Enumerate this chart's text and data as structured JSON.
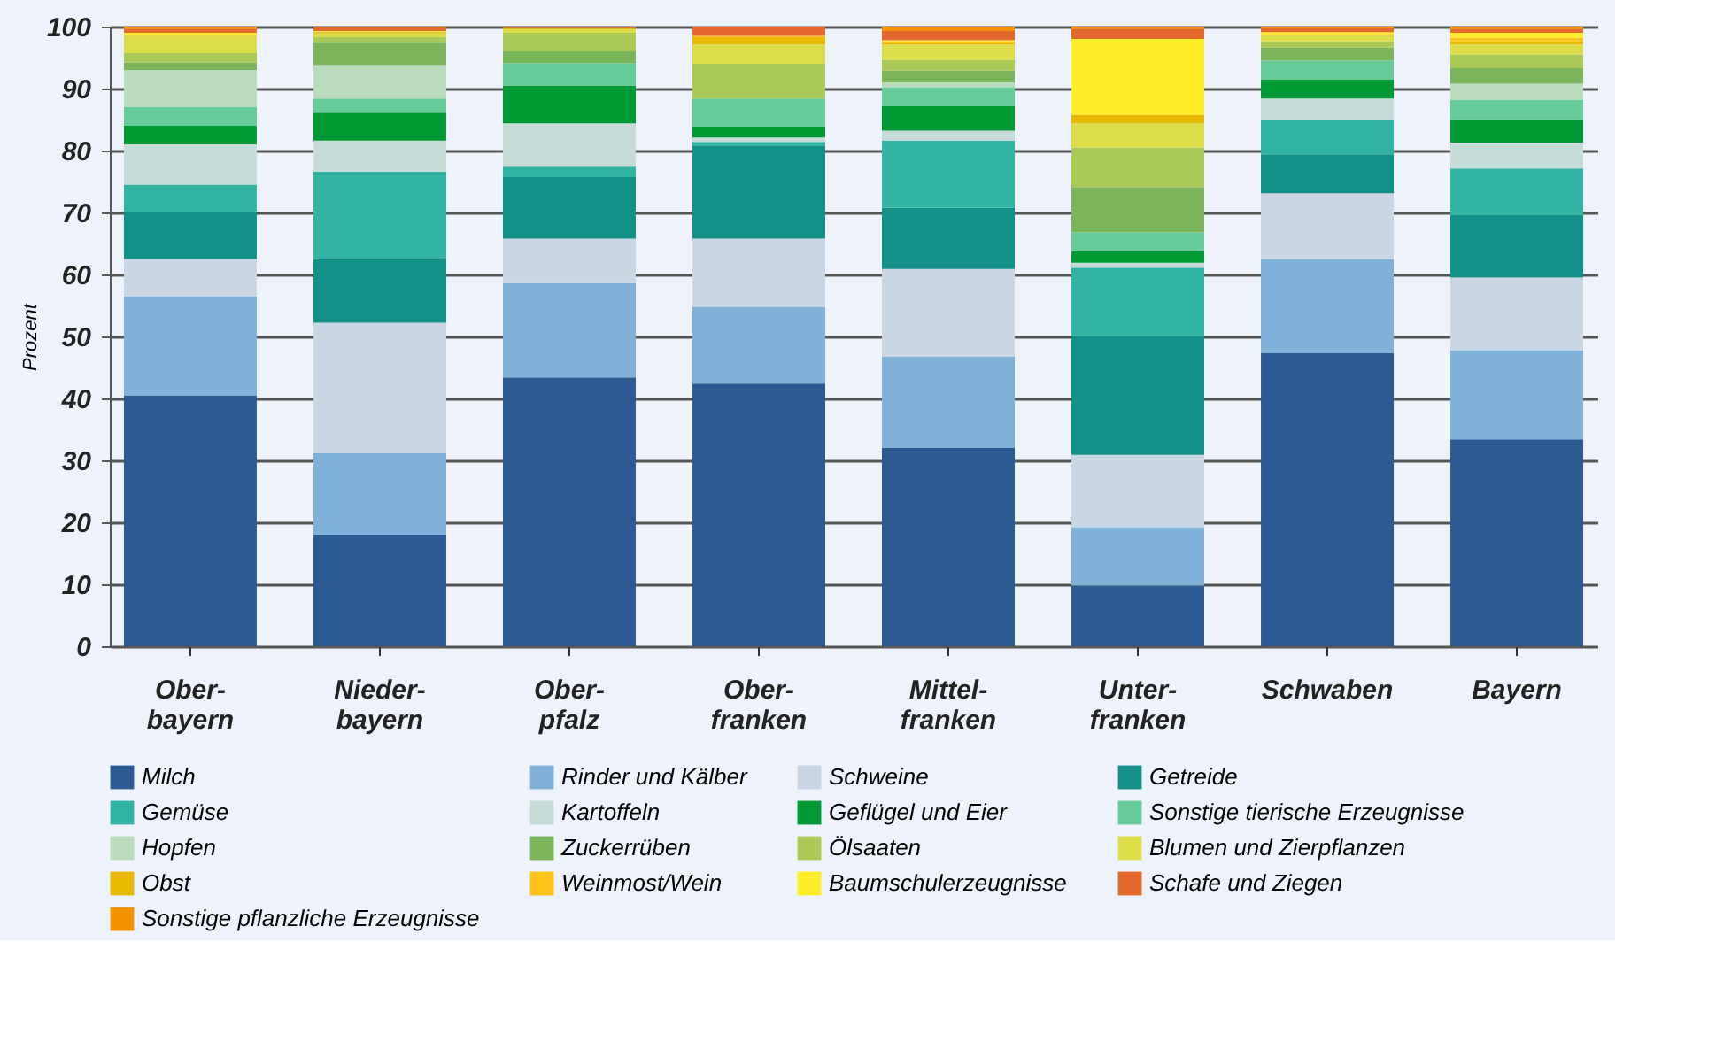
{
  "chart_data": {
    "type": "bar",
    "stacked": true,
    "ylabel": "Prozent",
    "categories": [
      "Ober-\nbayern",
      "Nieder-\nbayern",
      "Ober-\npfalz",
      "Ober-\nfranken",
      "Mittel-\nfranken",
      "Unter-\nfranken",
      "Schwaben",
      "Bayern"
    ],
    "ylim": [
      0,
      100
    ],
    "yticks": [
      0,
      10,
      20,
      30,
      40,
      50,
      60,
      70,
      80,
      90,
      100
    ],
    "grid": "y",
    "legend": "bottom",
    "series": [
      {
        "name": "Milch",
        "color": "#2c5b94",
        "values": [
          40.5,
          18.0,
          43.4,
          42.4,
          32.0,
          9.8,
          47.3,
          33.4
        ]
      },
      {
        "name": "Rinder und Kälber",
        "color": "#7fb1d9",
        "values": [
          16.0,
          13.2,
          15.2,
          12.4,
          14.7,
          9.4,
          15.2,
          14.4
        ]
      },
      {
        "name": "Schweine",
        "color": "#cad6e3",
        "values": [
          6.0,
          21.0,
          7.2,
          11.0,
          14.2,
          11.7,
          10.6,
          11.7
        ]
      },
      {
        "name": "Getreide",
        "color": "#139087",
        "values": [
          7.5,
          10.3,
          9.9,
          14.9,
          9.9,
          19.1,
          6.3,
          10.1
        ]
      },
      {
        "name": "Gemüse",
        "color": "#33b3a3",
        "values": [
          4.5,
          14.1,
          1.7,
          0.7,
          10.8,
          11.1,
          5.5,
          7.5
        ]
      },
      {
        "name": "Kartoffeln",
        "color": "#c6dcd8",
        "values": [
          6.5,
          5.0,
          7.0,
          0.7,
          1.6,
          0.8,
          3.5,
          4.2
        ]
      },
      {
        "name": "Geflügel und Eier",
        "color": "#009933",
        "values": [
          3.0,
          4.5,
          6.1,
          1.6,
          4.0,
          1.9,
          3.1,
          3.6
        ]
      },
      {
        "name": "Sonstige tierische Erzeugnisse",
        "color": "#66cc99",
        "values": [
          3.0,
          2.3,
          3.6,
          4.7,
          3.0,
          3.0,
          3.0,
          3.3
        ]
      },
      {
        "name": "Hopfen",
        "color": "#b8dcbc",
        "values": [
          6.0,
          5.4,
          0,
          0,
          0.8,
          0,
          0,
          2.6
        ]
      },
      {
        "name": "Zuckerrüben",
        "color": "#7ab55c",
        "values": [
          1.2,
          3.6,
          1.9,
          0,
          1.9,
          7.3,
          2.1,
          2.5
        ]
      },
      {
        "name": "Ölsaaten",
        "color": "#aac956",
        "values": [
          1.5,
          0.9,
          3.0,
          5.6,
          1.7,
          6.4,
          1.0,
          2.2
        ]
      },
      {
        "name": "Blumen und Zierpflanzen",
        "color": "#dddd4a",
        "values": [
          2.8,
          0.6,
          0.6,
          3.1,
          2.5,
          3.9,
          0.9,
          1.6
        ]
      },
      {
        "name": "Obst",
        "color": "#e6b800",
        "values": [
          0.2,
          0.2,
          0.1,
          1.2,
          0.2,
          1.4,
          0.3,
          0.5
        ]
      },
      {
        "name": "Weinmost/Wein",
        "color": "#fcc419",
        "values": [
          0,
          0.1,
          0.1,
          0.2,
          0.2,
          0,
          0,
          0.6
        ]
      },
      {
        "name": "Baumschulerzeugnisse",
        "color": "#ffed28",
        "values": [
          0.3,
          0.1,
          0,
          0,
          0.3,
          12.2,
          0.3,
          0.8
        ]
      },
      {
        "name": "Schafe und Ziegen",
        "color": "#e5682f",
        "values": [
          0.6,
          0.5,
          0.1,
          1.5,
          1.5,
          1.6,
          0.6,
          0.6
        ]
      },
      {
        "name": "Sonstige pflanzliche Erzeugnisse",
        "color": "#f39200",
        "values": [
          0.4,
          0.2,
          0.1,
          0,
          0.7,
          0.4,
          0.3,
          0.4
        ]
      }
    ]
  }
}
